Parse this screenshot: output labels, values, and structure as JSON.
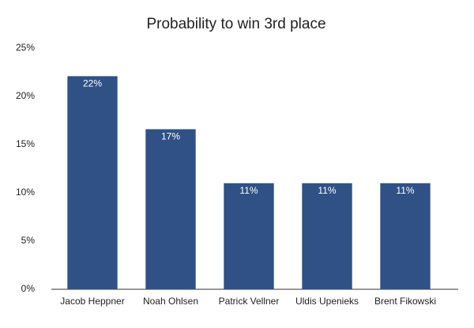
{
  "chart_data": {
    "type": "bar",
    "title": "Probability to win 3rd place",
    "categories": [
      "Jacob Heppner",
      "Noah Ohlsen",
      "Patrick Vellner",
      "Uldis Upenieks",
      "Brent Fikowski"
    ],
    "values": [
      22.1,
      16.6,
      11,
      11,
      11
    ],
    "value_labels": [
      "22%",
      "17%",
      "11%",
      "11%",
      "11%"
    ],
    "color": "#2f5186",
    "ylim": [
      0,
      25
    ],
    "yticks": [
      {
        "value": 0,
        "label": "0%"
      },
      {
        "value": 5,
        "label": "5%"
      },
      {
        "value": 10,
        "label": "10%"
      },
      {
        "value": 15,
        "label": "15%"
      },
      {
        "value": 20,
        "label": "20%"
      },
      {
        "value": 25,
        "label": "25%"
      }
    ],
    "grid": false
  }
}
